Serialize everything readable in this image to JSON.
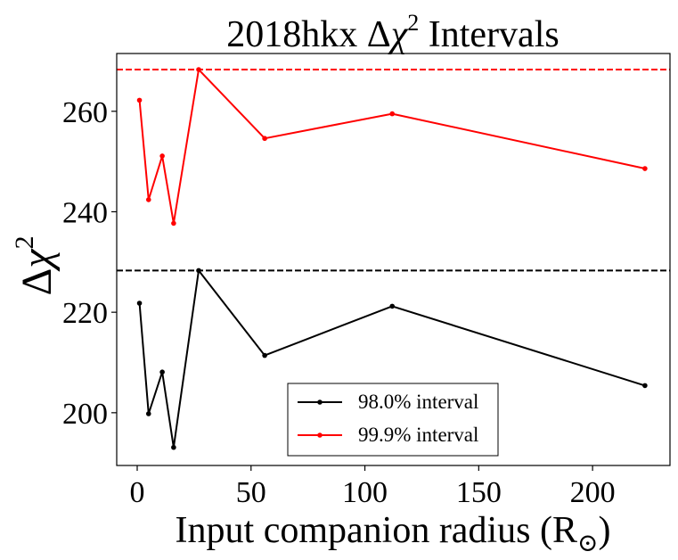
{
  "chart_data": {
    "type": "line",
    "title_prefix": "2018hkx ",
    "title_delta": "Δ",
    "title_chi": "χ",
    "title_exp": "2",
    "title_suffix": " Intervals",
    "xlabel_main": "Input companion radius (R",
    "xlabel_sub": "⊙",
    "xlabel_close": ")",
    "ylabel_delta": "Δ",
    "ylabel_chi": "χ",
    "ylabel_exp": "2",
    "xlim": [
      -9,
      234
    ],
    "ylim": [
      189.5,
      271.5
    ],
    "xticks": [
      0,
      50,
      100,
      150,
      200
    ],
    "yticks": [
      200,
      220,
      240,
      260
    ],
    "x": [
      1,
      5,
      11,
      16,
      27,
      56,
      112,
      223
    ],
    "series": [
      {
        "name": "98.0% interval",
        "color": "#000000",
        "values": [
          221.8,
          199.8,
          208.1,
          193.1,
          228.3,
          211.4,
          221.2,
          205.4
        ],
        "threshold": 228.3
      },
      {
        "name": "99.9% interval",
        "color": "#ff0000",
        "values": [
          262.2,
          242.4,
          251.1,
          237.7,
          268.3,
          254.6,
          259.5,
          248.6
        ],
        "threshold": 268.3
      }
    ],
    "legend_position": "lower center"
  }
}
